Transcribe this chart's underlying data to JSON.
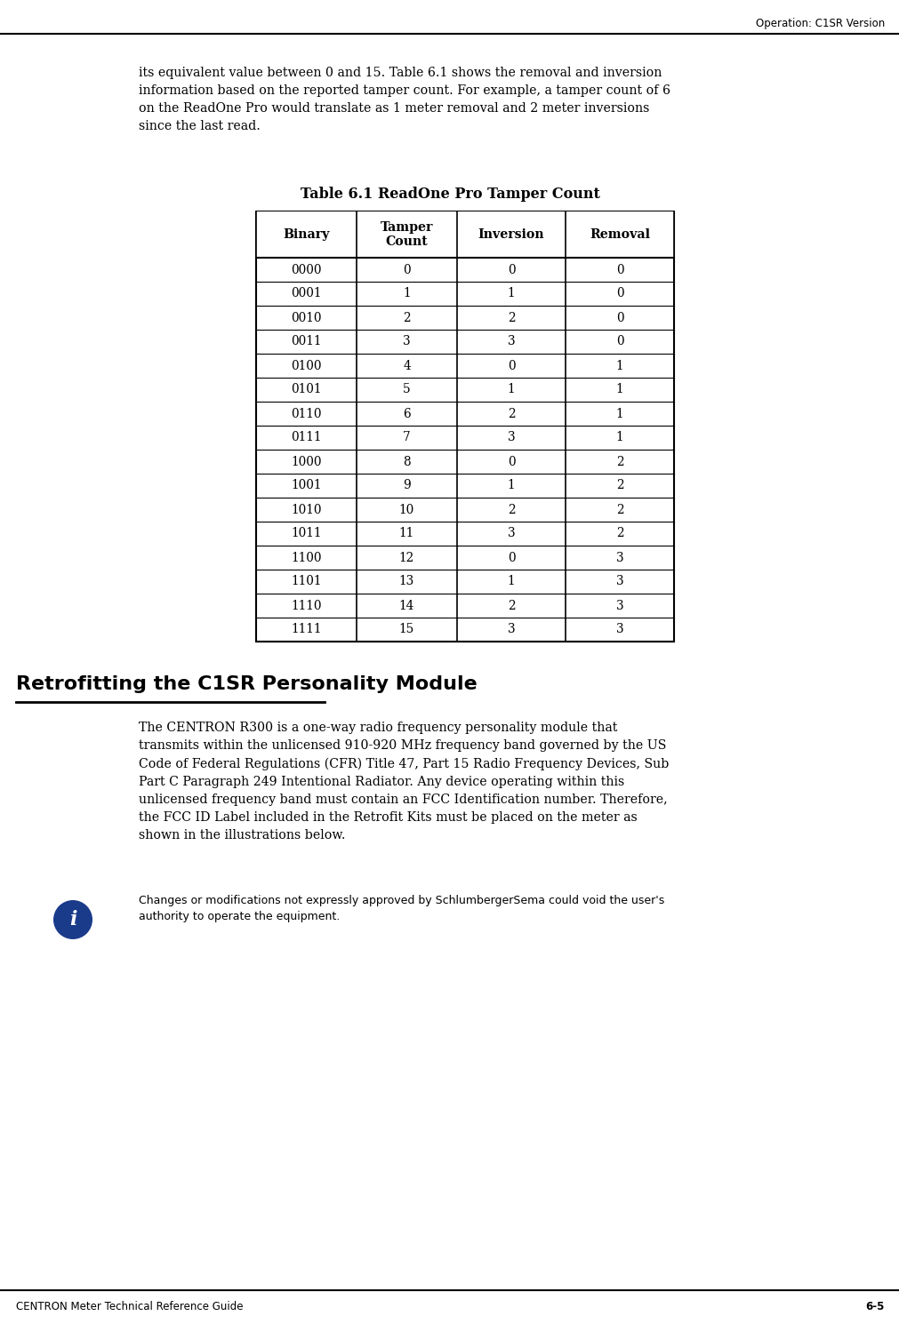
{
  "page_header_right": "Operation: C1SR Version",
  "page_footer_left": "CENTRON Meter Technical Reference Guide",
  "page_footer_right": "6-5",
  "intro_text": "its equivalent value between 0 and 15. Table 6.1 shows the removal and inversion\ninformation based on the reported tamper count. For example, a tamper count of 6\non the ReadOne Pro would translate as 1 meter removal and 2 meter inversions\nsince the last read.",
  "table_title": "Table 6.1 ReadOne Pro Tamper Count",
  "table_headers": [
    "Binary",
    "Tamper\nCount",
    "Inversion",
    "Removal"
  ],
  "table_rows": [
    [
      "0000",
      "0",
      "0",
      "0"
    ],
    [
      "0001",
      "1",
      "1",
      "0"
    ],
    [
      "0010",
      "2",
      "2",
      "0"
    ],
    [
      "0011",
      "3",
      "3",
      "0"
    ],
    [
      "0100",
      "4",
      "0",
      "1"
    ],
    [
      "0101",
      "5",
      "1",
      "1"
    ],
    [
      "0110",
      "6",
      "2",
      "1"
    ],
    [
      "0111",
      "7",
      "3",
      "1"
    ],
    [
      "1000",
      "8",
      "0",
      "2"
    ],
    [
      "1001",
      "9",
      "1",
      "2"
    ],
    [
      "1010",
      "10",
      "2",
      "2"
    ],
    [
      "1011",
      "11",
      "3",
      "2"
    ],
    [
      "1100",
      "12",
      "0",
      "3"
    ],
    [
      "1101",
      "13",
      "1",
      "3"
    ],
    [
      "1110",
      "14",
      "2",
      "3"
    ],
    [
      "1111",
      "15",
      "3",
      "3"
    ]
  ],
  "section_heading": "Retrofitting the C1SR Personality Module",
  "body_text": "The CENTRON R300 is a one-way radio frequency personality module that\ntransmits within the unlicensed 910-920 MHz frequency band governed by the US\nCode of Federal Regulations (CFR) Title 47, Part 15 Radio Frequency Devices, Sub\nPart C Paragraph 249 Intentional Radiator. Any device operating within this\nunlicensed frequency band must contain an FCC Identification number. Therefore,\nthe FCC ID Label included in the Retrofit Kits must be placed on the meter as\nshown in the illustrations below.",
  "note_text": "Changes or modifications not expressly approved by SchlumbergerSema could void the user's\nauthority to operate the equipment.",
  "bg_color": "#ffffff",
  "text_color": "#000000",
  "header_bg": "#ffffff",
  "header_text": "#000000",
  "table_line_color": "#000000",
  "info_icon_color": "#1a3a8a"
}
